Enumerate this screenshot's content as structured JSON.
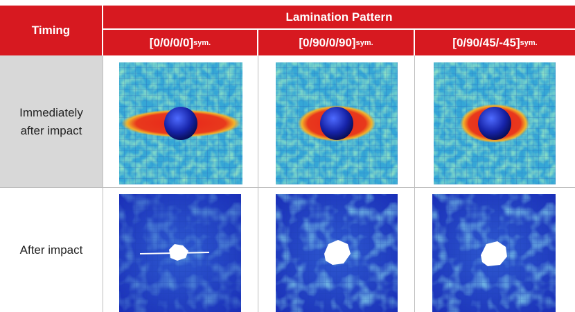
{
  "table": {
    "header": {
      "timing": "Timing",
      "group": "Lamination Pattern",
      "columns": [
        {
          "label": "[0/0/0/0]",
          "subscript": "sym."
        },
        {
          "label": "[0/90/0/90]",
          "subscript": "sym."
        },
        {
          "label": "[0/90/45/-45]",
          "subscript": "sym."
        }
      ]
    },
    "rows": [
      {
        "label": "Immediately after impact"
      },
      {
        "label": "After impact"
      }
    ]
  }
}
